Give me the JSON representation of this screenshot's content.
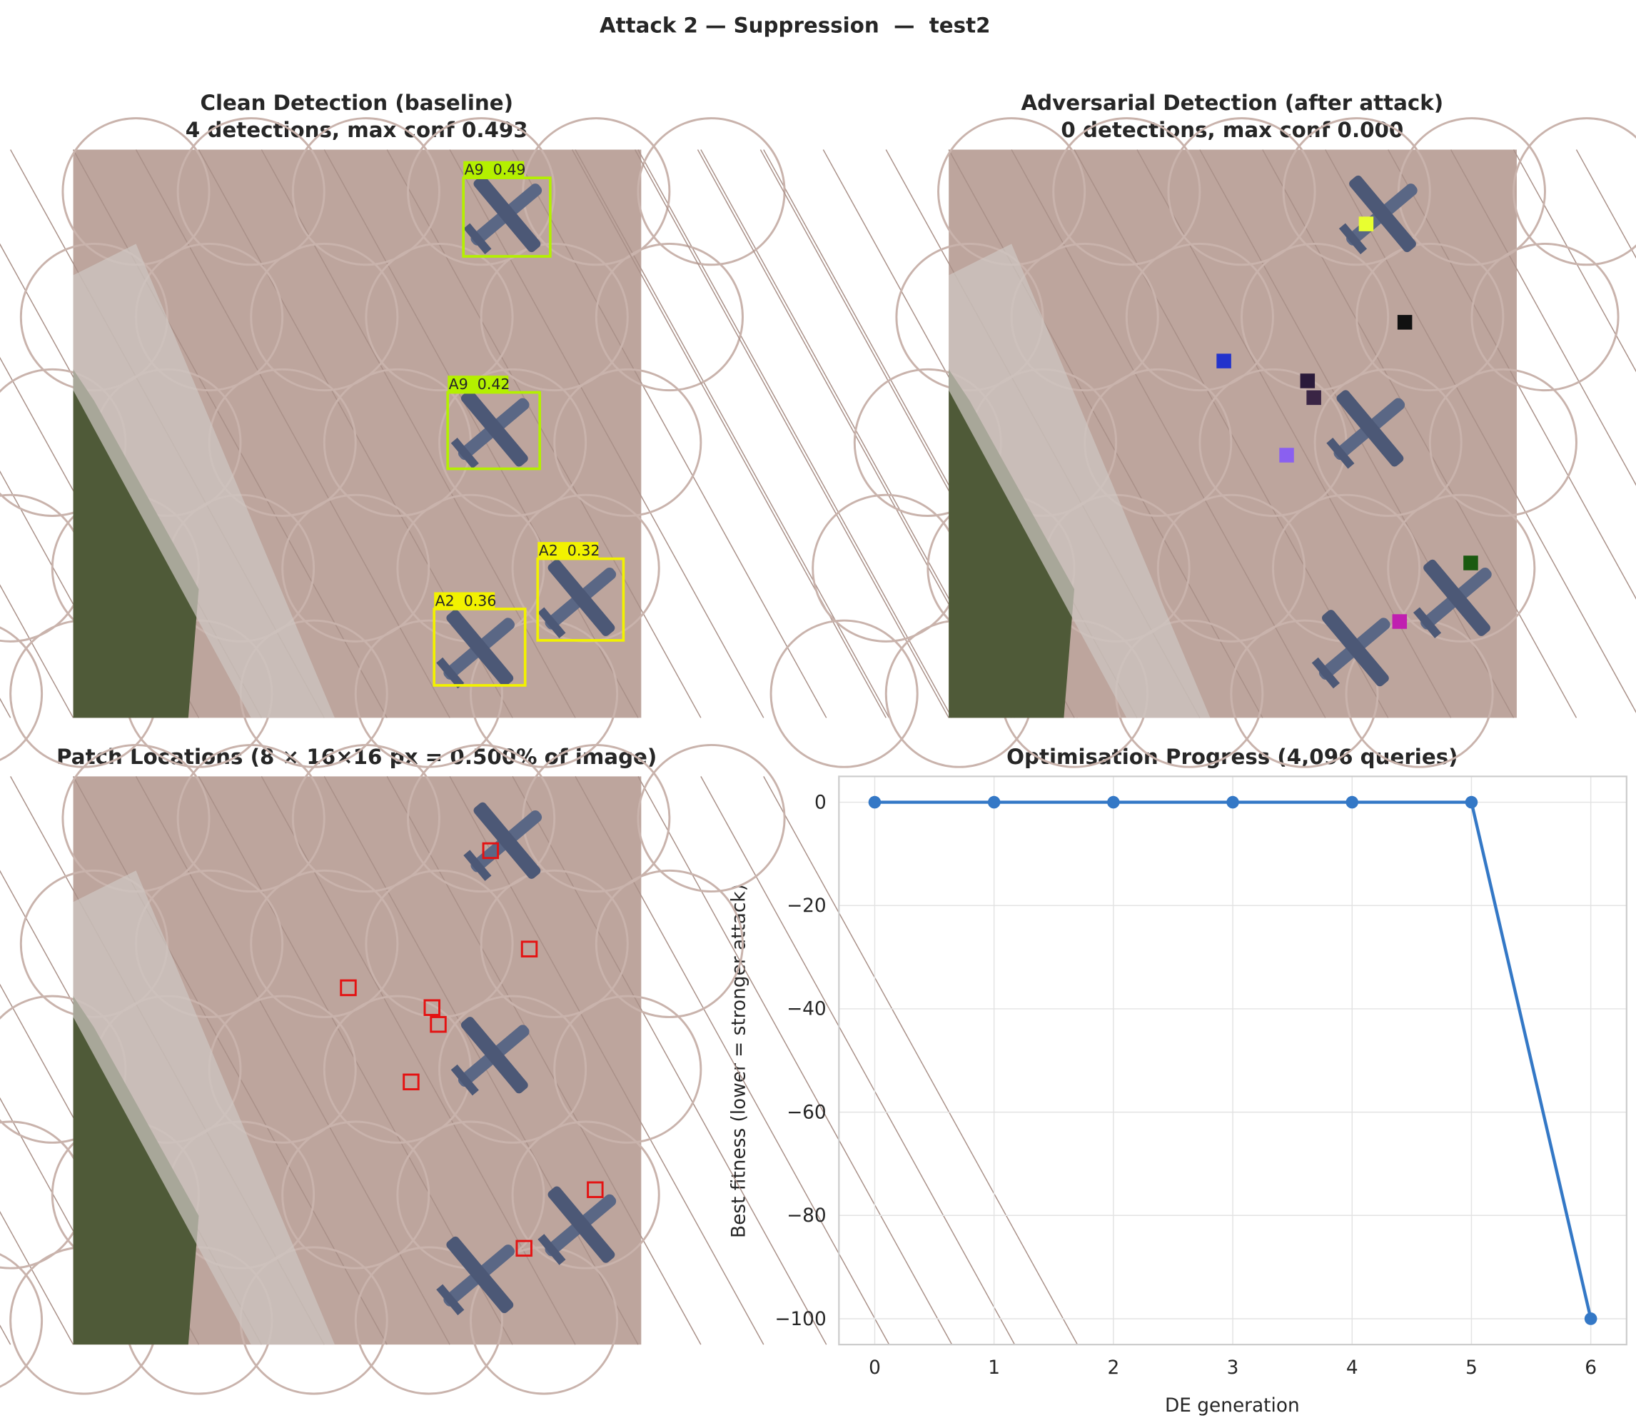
{
  "title": "Attack 2 — Suppression  —  test2",
  "image_panels": [
    {
      "title": [
        "Clean Detection (baseline)",
        "4 detections, max conf 0.493"
      ],
      "detections": [
        {
          "label": "A9  0.49",
          "color": "#b4f000"
        },
        {
          "label": "A9  0.42",
          "color": "#b4f000"
        },
        {
          "label": "A2  0.36",
          "color": "#f2f200"
        },
        {
          "label": "A2  0.32",
          "color": "#f2f200"
        }
      ]
    },
    {
      "title": [
        "Adversarial Detection (after attack)",
        "0 detections, max conf 0.000"
      ]
    },
    {
      "title": [
        "Patch Locations (8 × 16×16 px = 0.500% of image)"
      ]
    }
  ],
  "chart_data": {
    "type": "line",
    "title": "Optimisation Progress (4,096 queries)",
    "x_label": "DE generation",
    "y_label": "Best fitness (lower = stronger attack)",
    "x": [
      0,
      1,
      2,
      3,
      4,
      5,
      6
    ],
    "series": [
      {
        "name": "Best fitness",
        "color": "#3478c6",
        "values": [
          0,
          0,
          0,
          0,
          0,
          0,
          -100
        ]
      }
    ],
    "xlim": [
      -0.3,
      6.3
    ],
    "ylim": [
      -105,
      5
    ],
    "xticks": [
      0,
      1,
      2,
      3,
      4,
      5,
      6
    ],
    "yticks": [
      {
        "value": -100,
        "label": "−100"
      },
      {
        "value": -80,
        "label": "−80"
      },
      {
        "value": -60,
        "label": "−60"
      },
      {
        "value": -40,
        "label": "−40"
      },
      {
        "value": -20,
        "label": "−20"
      },
      0
    ],
    "grid": true
  }
}
